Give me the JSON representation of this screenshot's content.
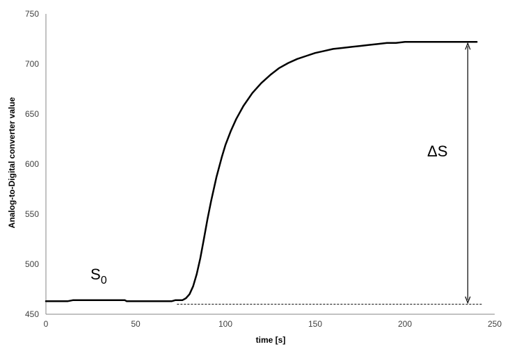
{
  "chart_data": {
    "type": "line",
    "title": "",
    "xlabel": "time [s]",
    "ylabel": "Analog-to-Digital converter value",
    "xlim": [
      0,
      250
    ],
    "ylim": [
      450,
      750
    ],
    "xticks": [
      "0",
      "50",
      "100",
      "150",
      "200",
      "250"
    ],
    "yticks": [
      "450",
      "500",
      "550",
      "600",
      "650",
      "700",
      "750"
    ],
    "grid": false,
    "legend": "none",
    "series": [
      {
        "color": "#000000",
        "x": [
          0,
          4,
          8,
          12,
          15,
          20,
          25,
          30,
          35,
          40,
          44,
          45,
          50,
          55,
          60,
          65,
          70,
          72,
          74,
          76,
          78,
          80,
          82,
          84,
          86,
          88,
          90,
          92,
          95,
          98,
          100,
          103,
          106,
          110,
          115,
          120,
          125,
          130,
          135,
          140,
          145,
          150,
          155,
          160,
          165,
          170,
          175,
          180,
          185,
          190,
          195,
          200,
          205,
          210,
          215,
          220,
          225,
          230,
          235,
          240
        ],
        "y": [
          463,
          463,
          463,
          463,
          464,
          464,
          464,
          464,
          464,
          464,
          464,
          463,
          463,
          463,
          463,
          463,
          463,
          464,
          464,
          464,
          466,
          470,
          478,
          490,
          506,
          525,
          545,
          563,
          587,
          607,
          619,
          633,
          645,
          658,
          671,
          681,
          689,
          696,
          701,
          705,
          708,
          711,
          713,
          715,
          716,
          717,
          718,
          719,
          720,
          721,
          721,
          722,
          722,
          722,
          722,
          722,
          722,
          722,
          722,
          722
        ]
      }
    ],
    "annotations": {
      "baseline_label": "S",
      "baseline_sub": "0",
      "delta_label": "ΔS",
      "baseline_value": 460,
      "baseline_x_range": [
        73,
        243
      ],
      "arrow_x": 235,
      "arrow_y_range": [
        460,
        722
      ]
    }
  }
}
